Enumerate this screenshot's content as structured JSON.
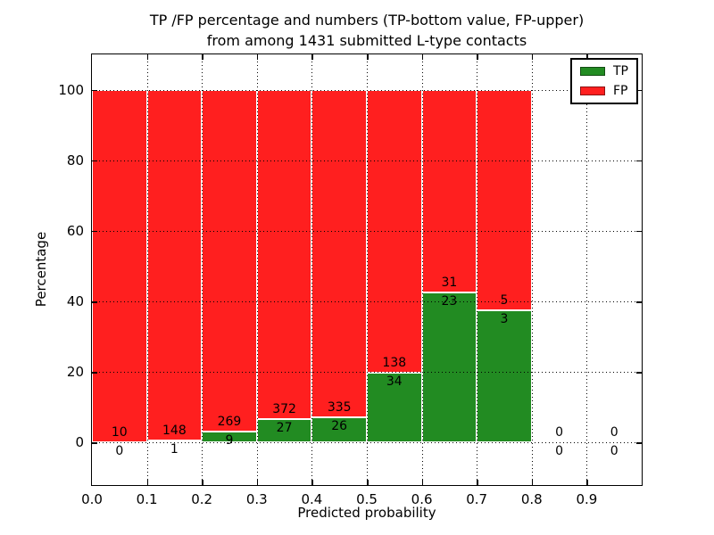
{
  "figure": {
    "title_line1": "TP /FP percentage and numbers (TP-bottom value, FP-upper)",
    "title_line2": "from among 1431 submitted L-type contacts"
  },
  "chart_data": {
    "type": "bar",
    "stacked": true,
    "title": "TP /FP percentage and numbers (TP-bottom value, FP-upper)\nfrom among 1431 submitted L-type contacts",
    "xlabel": "Predicted probability",
    "ylabel": "Percentage",
    "total_submitted_contacts": 1431,
    "bin_width": 0.1,
    "bin_starts": [
      0.0,
      0.1,
      0.2,
      0.3,
      0.4,
      0.5,
      0.6,
      0.7,
      0.8,
      0.9
    ],
    "series": [
      {
        "name": "TP",
        "color": "#228b22",
        "counts": [
          0,
          1,
          9,
          27,
          26,
          34,
          23,
          3,
          0,
          0
        ],
        "percent": [
          0,
          0.67,
          3.24,
          6.77,
          7.2,
          19.77,
          42.59,
          37.5,
          0,
          0
        ]
      },
      {
        "name": "FP",
        "color": "#ff1f1f",
        "counts": [
          10,
          148,
          269,
          372,
          335,
          138,
          31,
          5,
          0,
          0
        ],
        "percent": [
          100,
          99.33,
          96.76,
          93.23,
          92.8,
          80.23,
          57.41,
          62.5,
          0,
          0
        ]
      }
    ],
    "label_rule": "TP count printed below segment boundary, FP count printed above segment boundary",
    "xticks": [
      "0.0",
      "0.1",
      "0.2",
      "0.3",
      "0.4",
      "0.5",
      "0.6",
      "0.7",
      "0.8",
      "0.9"
    ],
    "yticks": [
      "0",
      "20",
      "40",
      "60",
      "80",
      "100"
    ],
    "xlim": [
      0,
      1
    ],
    "ylim": [
      -12,
      110
    ],
    "grid": "dotted",
    "grid_color": "#000000",
    "bar_edge_color": "#ffffff",
    "legend_position": "upper right",
    "legend_entries": [
      "TP",
      "FP"
    ]
  }
}
